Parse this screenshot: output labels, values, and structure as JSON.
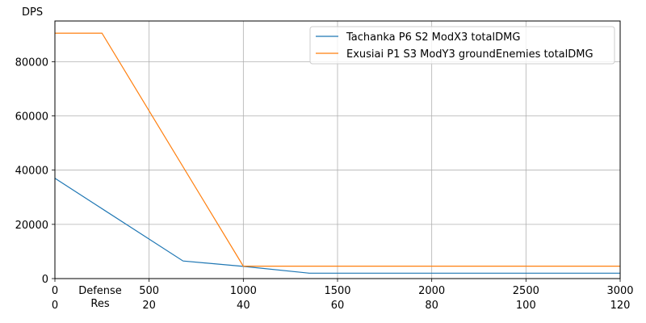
{
  "chart_data": {
    "type": "line",
    "ylabel": "DPS",
    "xlabel_left": "Defense",
    "xlabel_right": "Res",
    "x_ticks": [
      "0",
      "500",
      "1000",
      "1500",
      "2000",
      "2500",
      "3000"
    ],
    "x2_ticks": [
      "0",
      "20",
      "40",
      "60",
      "80",
      "100",
      "120"
    ],
    "y_ticks": [
      "0",
      "20000",
      "40000",
      "60000",
      "80000"
    ],
    "xlim": [
      0,
      3000
    ],
    "ylim": [
      0,
      95000
    ],
    "grid": true,
    "legend_position": "top-right",
    "series": [
      {
        "name": "Tachanka P6 S2 ModX3 totalDMG",
        "color": "#1f77b4",
        "x": [
          0,
          680,
          1000,
          1350,
          3000
        ],
        "y": [
          37000,
          6500,
          4500,
          2000,
          2000
        ]
      },
      {
        "name": "Exusiai P1 S3 ModY3 groundEnemies totalDMG",
        "color": "#ff7f0e",
        "x": [
          0,
          250,
          1000,
          3000
        ],
        "y": [
          90500,
          90500,
          4600,
          4600
        ]
      }
    ]
  }
}
